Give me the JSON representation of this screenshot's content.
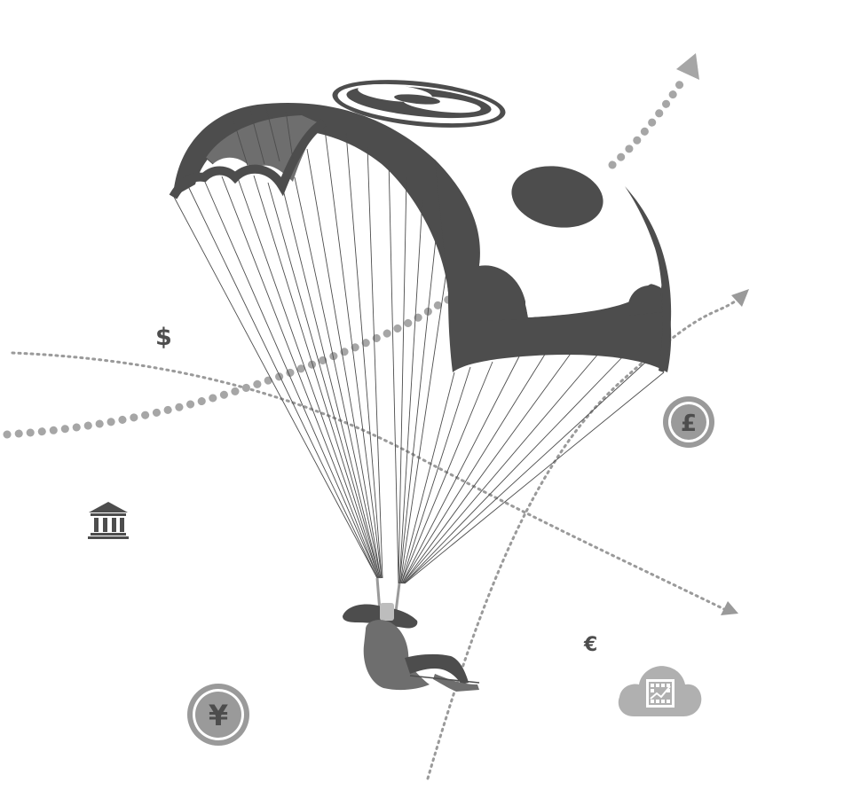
{
  "illustration": {
    "subject": "paraglider",
    "colors": {
      "dark": "#4d4d4d",
      "mid": "#6e6e6e",
      "light": "#9a9a9a",
      "lighter": "#bdbdbd",
      "background": "#ffffff"
    }
  },
  "symbols": {
    "dollar": "$",
    "euro": "€",
    "pound": "£",
    "yen": "¥"
  },
  "icons": [
    "bank-icon",
    "pound-coin-icon",
    "yen-coin-icon",
    "cloud-chart-icon",
    "logo-icon"
  ]
}
